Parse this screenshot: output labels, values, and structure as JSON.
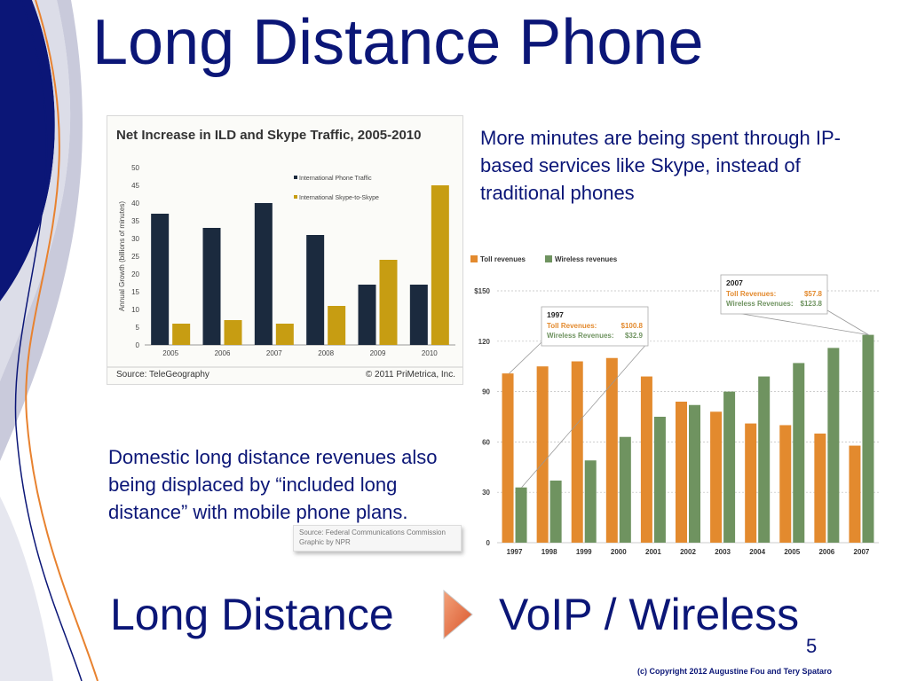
{
  "slide": {
    "title": "Long Distance Phone",
    "note_top": "More minutes are being spent through IP-based services like Skype, instead of traditional phones",
    "note_bottom": "Domestic long distance revenues also being displaced by “included long distance” with mobile phone plans.",
    "caption_source": "Source: Federal Communications Commission",
    "caption_graphic": "Graphic by NPR",
    "bottom_left": "Long Distance",
    "bottom_right": "VoIP / Wireless",
    "page_number": "5",
    "copyright": "(c) Copyright 2012  Augustine Fou and Tery Spataro",
    "colors": {
      "title": "#0b1677",
      "navy_band": "#0b1677",
      "arrow": "#e8693a"
    },
    "arrow_icon": "right-arrow-icon"
  },
  "chart_data": [
    {
      "type": "bar",
      "title": "Net Increase in ILD and Skype Traffic, 2005-2010",
      "ylabel": "Annual Growth (billions of minutes)",
      "xlabel": "",
      "categories": [
        "2005",
        "2006",
        "2007",
        "2008",
        "2009",
        "2010"
      ],
      "ylim": [
        0,
        50
      ],
      "yticks": [
        0,
        5,
        10,
        15,
        20,
        25,
        30,
        35,
        40,
        45,
        50
      ],
      "series": [
        {
          "name": "International Phone Traffic",
          "color": "#1b2a3e",
          "values": [
            37,
            33,
            40,
            31,
            17,
            17
          ]
        },
        {
          "name": "International Skype-to-Skype",
          "color": "#c79d12",
          "values": [
            6,
            7,
            6,
            11,
            24,
            45
          ]
        }
      ],
      "source": "Source: TeleGeography",
      "credit": "© 2011 PriMetrica, Inc.",
      "grid": false,
      "legend": "top-right"
    },
    {
      "type": "bar",
      "categories": [
        "1997",
        "1998",
        "1999",
        "2000",
        "2001",
        "2002",
        "2003",
        "2004",
        "2005",
        "2006",
        "2007"
      ],
      "ylim": [
        0,
        150
      ],
      "ytick_labels": [
        "0",
        "30",
        "60",
        "90",
        "120",
        "$150"
      ],
      "yticks": [
        0,
        30,
        60,
        90,
        120,
        150
      ],
      "series": [
        {
          "name": "Toll revenues",
          "color": "#e38a2e",
          "values": [
            100.8,
            105,
            108,
            110,
            99,
            84,
            78,
            71,
            70,
            65,
            57.8
          ]
        },
        {
          "name": "Wireless revenues",
          "color": "#6f9360",
          "values": [
            32.9,
            37,
            49,
            63,
            75,
            82,
            90,
            99,
            107,
            116,
            123.8
          ]
        }
      ],
      "annotations": [
        {
          "year": "1997",
          "lines": [
            "Toll Revenues:",
            "$100.8",
            "Wireless Revenues:",
            "$32.9"
          ]
        },
        {
          "year": "2007",
          "lines": [
            "Toll Revenues:",
            "$57.8",
            "Wireless Revenues:",
            "$123.8"
          ]
        }
      ],
      "grid": true,
      "legend": "top-left"
    }
  ]
}
